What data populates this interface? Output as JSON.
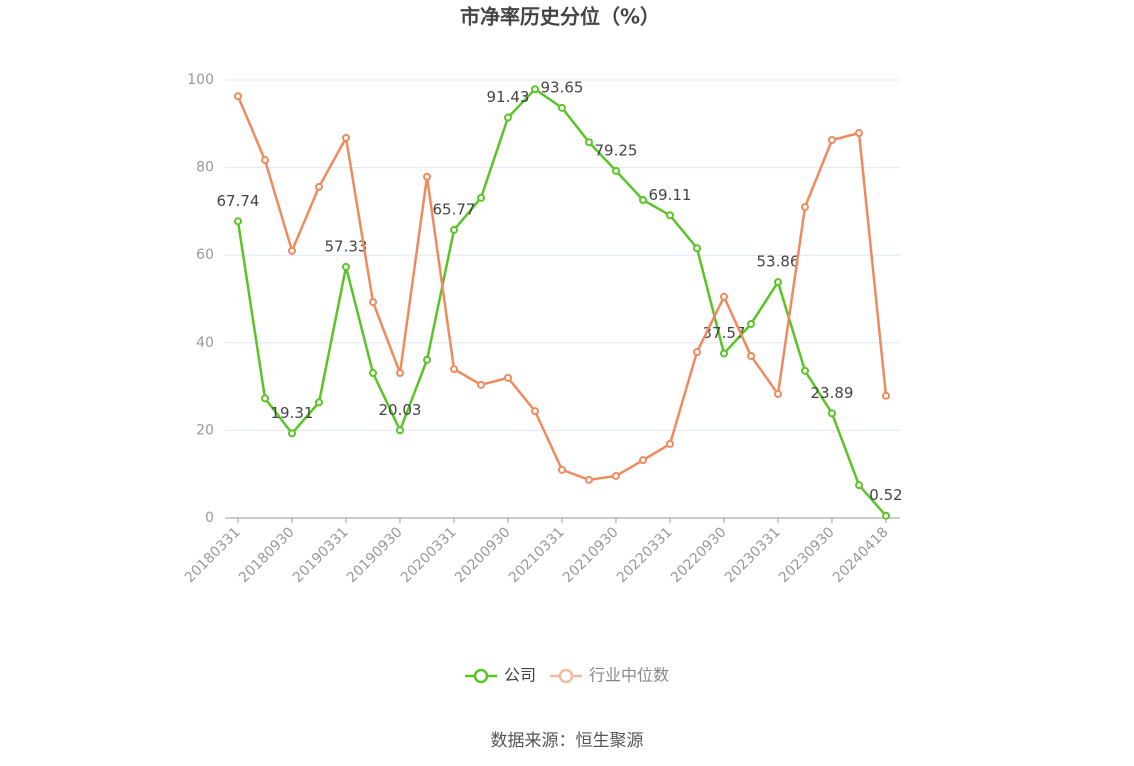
{
  "chart_data": {
    "type": "line",
    "title": "市净率历史分位（%）",
    "categories": [
      "20180331",
      null,
      "20180930",
      null,
      "20190331",
      null,
      "20190930",
      null,
      "20200331",
      null,
      "20200930",
      null,
      "20210331",
      null,
      "20210930",
      null,
      "20220331",
      null,
      "20220930",
      null,
      "20230331",
      null,
      "20230930",
      null,
      "20240418"
    ],
    "series": [
      {
        "name": "公司",
        "color": "#5ac427",
        "values": [
          67.74,
          27.3,
          19.31,
          26.4,
          57.33,
          33.1,
          20.03,
          36.1,
          65.77,
          73.1,
          91.43,
          97.9,
          93.65,
          85.8,
          79.25,
          72.6,
          69.11,
          61.6,
          37.57,
          44.3,
          53.86,
          33.6,
          23.89,
          7.5,
          0.52
        ],
        "value_labels": [
          "67.74",
          null,
          "19.31",
          null,
          "57.33",
          null,
          "20.03",
          null,
          "65.77",
          null,
          "91.43",
          null,
          "93.65",
          null,
          "79.25",
          null,
          "69.11",
          null,
          "37.57",
          null,
          "53.86",
          null,
          "23.89",
          null,
          "0.52"
        ]
      },
      {
        "name": "行业中位数",
        "color": "#ef8a5e",
        "values": [
          96.3,
          81.7,
          61,
          75.6,
          86.8,
          49.3,
          33.1,
          77.9,
          34,
          30.4,
          32,
          24.4,
          11,
          8.7,
          9.6,
          13.2,
          16.9,
          37.9,
          50.5,
          37,
          28.3,
          71,
          86.3,
          87.9,
          27.9
        ]
      }
    ],
    "ylim": [
      0,
      100
    ],
    "yticks": [
      0,
      20,
      40,
      60,
      80,
      100
    ],
    "grid": true,
    "source": "数据来源：恒生聚源"
  }
}
